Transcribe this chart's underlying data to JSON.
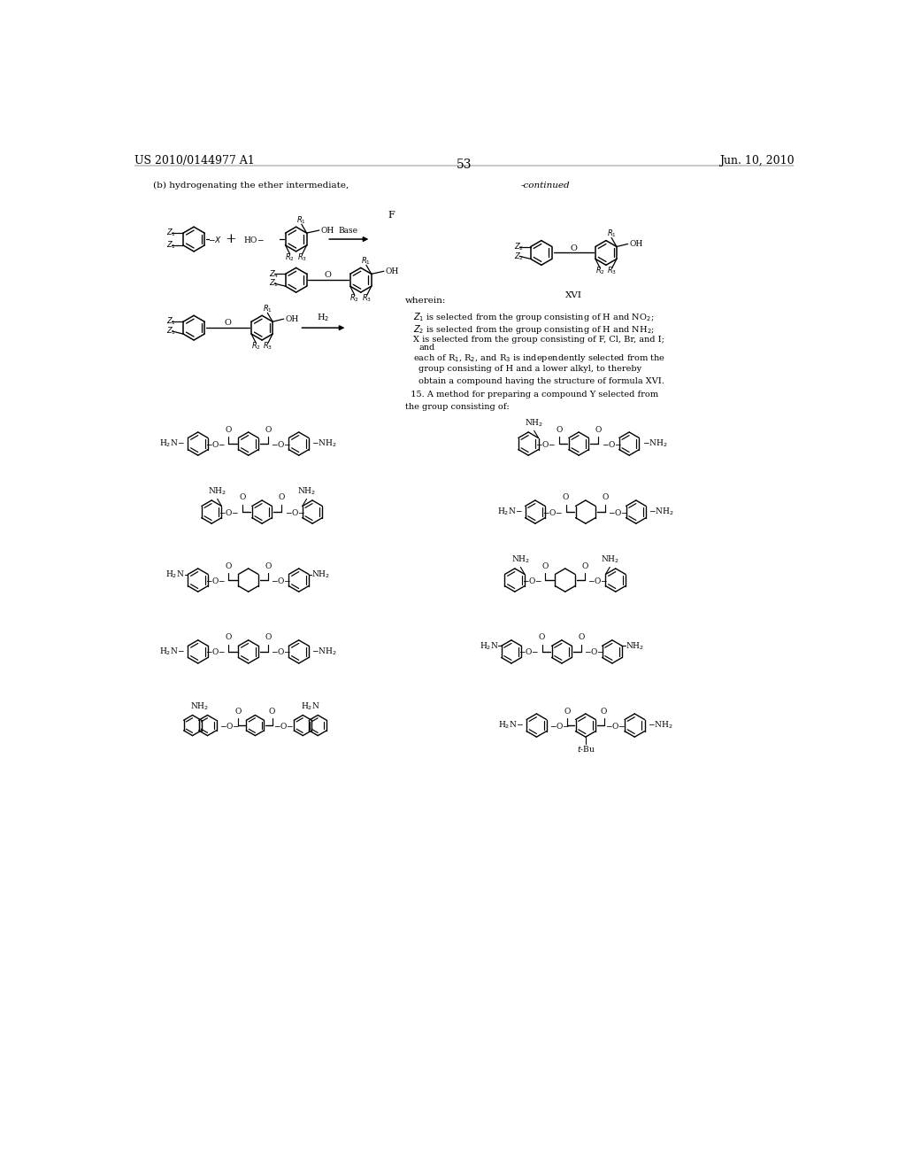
{
  "page_number": "53",
  "patent_number": "US 2010/0144977 A1",
  "patent_date": "Jun. 10, 2010",
  "bg": "#ffffff",
  "header_fs": 9,
  "body_fs": 7.5,
  "small_fs": 6.5,
  "struct_fs": 6.5
}
